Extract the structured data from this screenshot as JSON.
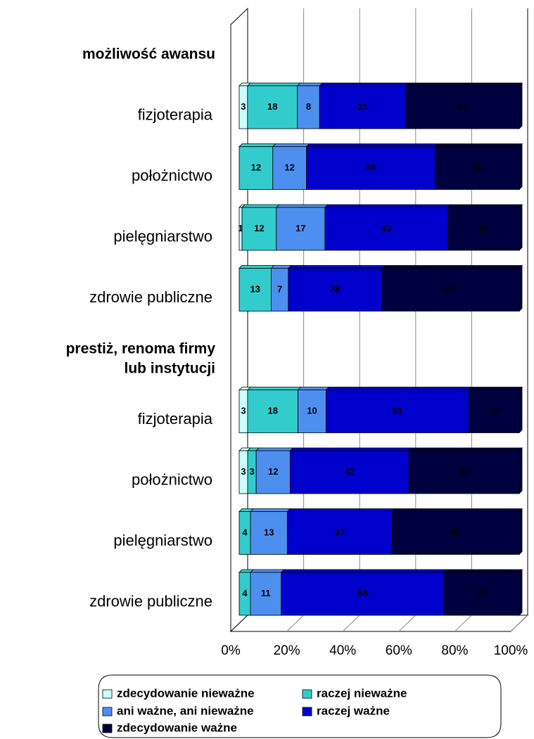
{
  "chart_data": {
    "type": "bar",
    "orientation": "horizontal",
    "stacking": "percent",
    "categories": [
      "możliwość awansu",
      "fizjoterapia",
      "położnictwo",
      "pielęgniarstwo",
      "zdrowie publiczne",
      "prestiż, renoma firmy\nlub instytucji",
      "fizjoterapia",
      "położnictwo",
      "pielęgniarstwo",
      "zdrowie publiczne"
    ],
    "series": [
      {
        "name": "zdecydowanie nieważne",
        "color": "#ccffff",
        "values": [
          null,
          3,
          null,
          1,
          null,
          null,
          3,
          3,
          null,
          null
        ]
      },
      {
        "name": "raczej nieważne",
        "color": "#33cccc",
        "values": [
          null,
          18,
          12,
          12,
          13,
          null,
          18,
          3,
          4,
          4
        ]
      },
      {
        "name": "ani ważne, ani nieważne",
        "color": "#4d8fef",
        "values": [
          null,
          8,
          12,
          17,
          7,
          null,
          10,
          12,
          13,
          11
        ]
      },
      {
        "name": "raczej ważne",
        "color": "#0000cc",
        "values": [
          null,
          31,
          46,
          43,
          38,
          null,
          51,
          42,
          37,
          58
        ]
      },
      {
        "name": "zdecydowanie ważne",
        "color": "#000040",
        "values": [
          null,
          41,
          30,
          25,
          56,
          null,
          18,
          39,
          45,
          27
        ]
      }
    ],
    "xlim": [
      0,
      100
    ],
    "xticks": [
      {
        "value": 0,
        "label": "0%"
      },
      {
        "value": 20,
        "label": "20%"
      },
      {
        "value": 40,
        "label": "40%"
      },
      {
        "value": 60,
        "label": "60%"
      },
      {
        "value": 80,
        "label": "80%"
      },
      {
        "value": 100,
        "label": "100%"
      }
    ],
    "grid": true,
    "legend": "bottom"
  }
}
